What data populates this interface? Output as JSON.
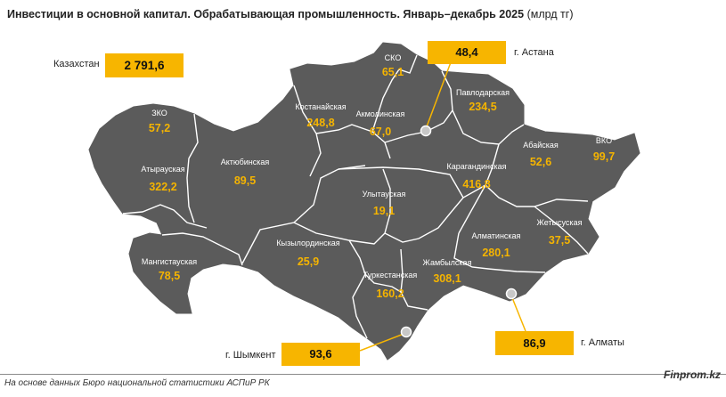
{
  "title": {
    "main": "Инвестиции в основной капитал. Обрабатывающая промышленность. Январь–декабрь 2025",
    "unit": "(млрд тг)"
  },
  "kazakhstan": {
    "label": "Казахстан",
    "value": "2 791,6"
  },
  "cities": {
    "astana": {
      "label": "г. Астана",
      "value": "48,4"
    },
    "almaty": {
      "label": "г. Алматы",
      "value": "86,9"
    },
    "shymkent": {
      "label": "г. Шымкент",
      "value": "93,6"
    }
  },
  "regions": [
    {
      "name": "СКО",
      "value": "65,1"
    },
    {
      "name": "Павлодарская",
      "value": "234,5"
    },
    {
      "name": "Костанайская",
      "value": "248,8"
    },
    {
      "name": "Акмолинская",
      "value": "67,0"
    },
    {
      "name": "ЗКО",
      "value": "57,2"
    },
    {
      "name": "Атырауская",
      "value": "322,2"
    },
    {
      "name": "Актюбинская",
      "value": "89,5"
    },
    {
      "name": "Карагандинская",
      "value": "416,8"
    },
    {
      "name": "Абайская",
      "value": "52,6"
    },
    {
      "name": "ВКО",
      "value": "99,7"
    },
    {
      "name": "Улытауская",
      "value": "19,1"
    },
    {
      "name": "Жетысуская",
      "value": "37,5"
    },
    {
      "name": "Алматинская",
      "value": "280,1"
    },
    {
      "name": "Кызылординская",
      "value": "25,9"
    },
    {
      "name": "Мангистауская",
      "value": "78,5"
    },
    {
      "name": "Жамбылская",
      "value": "308,1"
    },
    {
      "name": "Туркестанская",
      "value": "160,2"
    }
  ],
  "colors": {
    "map_fill": "#5b5b5b",
    "border": "#ffffff",
    "accent": "#f7b500"
  },
  "footer": {
    "source": "На основе данных Бюро национальной статистики АСПиР РК",
    "brand": "Finprom.kz"
  }
}
